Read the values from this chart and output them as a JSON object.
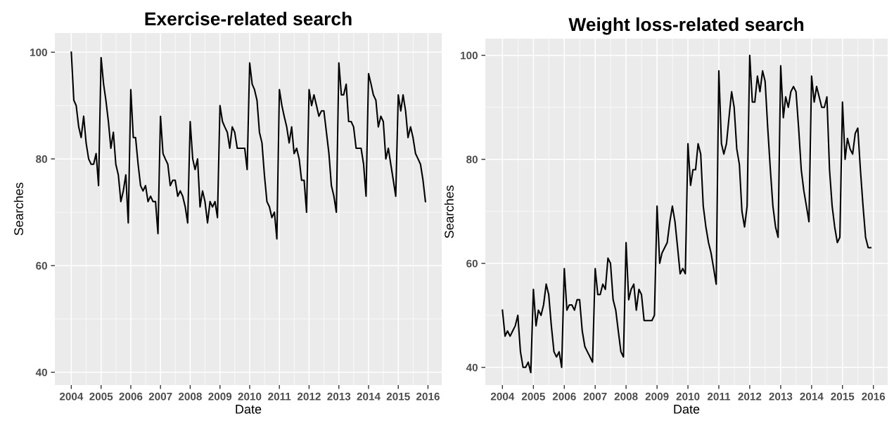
{
  "chart_data": [
    {
      "type": "line",
      "title": "Exercise-related search",
      "xlabel": "Date",
      "ylabel": "Searches",
      "x": [
        "2004-01",
        "2004-02",
        "2004-03",
        "2004-04",
        "2004-05",
        "2004-06",
        "2004-07",
        "2004-08",
        "2004-09",
        "2004-10",
        "2004-11",
        "2004-12",
        "2005-01",
        "2005-02",
        "2005-03",
        "2005-04",
        "2005-05",
        "2005-06",
        "2005-07",
        "2005-08",
        "2005-09",
        "2005-10",
        "2005-11",
        "2005-12",
        "2006-01",
        "2006-02",
        "2006-03",
        "2006-04",
        "2006-05",
        "2006-06",
        "2006-07",
        "2006-08",
        "2006-09",
        "2006-10",
        "2006-11",
        "2006-12",
        "2007-01",
        "2007-02",
        "2007-03",
        "2007-04",
        "2007-05",
        "2007-06",
        "2007-07",
        "2007-08",
        "2007-09",
        "2007-10",
        "2007-11",
        "2007-12",
        "2008-01",
        "2008-02",
        "2008-03",
        "2008-04",
        "2008-05",
        "2008-06",
        "2008-07",
        "2008-08",
        "2008-09",
        "2008-10",
        "2008-11",
        "2008-12",
        "2009-01",
        "2009-02",
        "2009-03",
        "2009-04",
        "2009-05",
        "2009-06",
        "2009-07",
        "2009-08",
        "2009-09",
        "2009-10",
        "2009-11",
        "2009-12",
        "2010-01",
        "2010-02",
        "2010-03",
        "2010-04",
        "2010-05",
        "2010-06",
        "2010-07",
        "2010-08",
        "2010-09",
        "2010-10",
        "2010-11",
        "2010-12",
        "2011-01",
        "2011-02",
        "2011-03",
        "2011-04",
        "2011-05",
        "2011-06",
        "2011-07",
        "2011-08",
        "2011-09",
        "2011-10",
        "2011-11",
        "2011-12",
        "2012-01",
        "2012-02",
        "2012-03",
        "2012-04",
        "2012-05",
        "2012-06",
        "2012-07",
        "2012-08",
        "2012-09",
        "2012-10",
        "2012-11",
        "2012-12",
        "2013-01",
        "2013-02",
        "2013-03",
        "2013-04",
        "2013-05",
        "2013-06",
        "2013-07",
        "2013-08",
        "2013-09",
        "2013-10",
        "2013-11",
        "2013-12",
        "2014-01",
        "2014-02",
        "2014-03",
        "2014-04",
        "2014-05",
        "2014-06",
        "2014-07",
        "2014-08",
        "2014-09",
        "2014-10",
        "2014-11",
        "2014-12",
        "2015-01",
        "2015-02",
        "2015-03",
        "2015-04",
        "2015-05",
        "2015-06",
        "2015-07",
        "2015-08",
        "2015-09",
        "2015-10",
        "2015-11",
        "2015-12"
      ],
      "series": [
        {
          "color": "#000000",
          "values": [
            100,
            91,
            90,
            86,
            84,
            88,
            83,
            80,
            79,
            79,
            81,
            75,
            99,
            94,
            91,
            87,
            82,
            85,
            79,
            77,
            72,
            74,
            77,
            68,
            93,
            84,
            84,
            79,
            75,
            74,
            75,
            72,
            73,
            72,
            72,
            66,
            88,
            81,
            80,
            79,
            75,
            76,
            76,
            73,
            74,
            73,
            71,
            68,
            87,
            80,
            78,
            80,
            71,
            74,
            72,
            68,
            72,
            71,
            72,
            69,
            90,
            87,
            86,
            85,
            82,
            86,
            85,
            82,
            82,
            82,
            82,
            78,
            98,
            94,
            93,
            91,
            85,
            83,
            77,
            72,
            71,
            69,
            70,
            65,
            93,
            90,
            88,
            86,
            83,
            86,
            81,
            82,
            80,
            76,
            76,
            70,
            93,
            90,
            92,
            90,
            88,
            89,
            89,
            85,
            81,
            75,
            73,
            70,
            98,
            92,
            92,
            94,
            87,
            87,
            86,
            82,
            82,
            82,
            79,
            73,
            96,
            94,
            92,
            91,
            86,
            88,
            87,
            80,
            82,
            79,
            76,
            73,
            92,
            89,
            92,
            89,
            84,
            86,
            84,
            81,
            80,
            79,
            76,
            72
          ]
        }
      ],
      "xlim": [
        "2003-06-13",
        "2016-06-18"
      ],
      "xticks": [
        "2004",
        "2005",
        "2006",
        "2007",
        "2008",
        "2009",
        "2010",
        "2011",
        "2012",
        "2013",
        "2014",
        "2015",
        "2016"
      ],
      "ylim": [
        37.6,
        103.6
      ],
      "yticks": [
        40,
        60,
        80,
        100
      ],
      "grid": true
    },
    {
      "type": "line",
      "title": "Weight loss-related search",
      "xlabel": "Date",
      "ylabel": "Searches",
      "x": [
        "2004-01",
        "2004-02",
        "2004-03",
        "2004-04",
        "2004-05",
        "2004-06",
        "2004-07",
        "2004-08",
        "2004-09",
        "2004-10",
        "2004-11",
        "2004-12",
        "2005-01",
        "2005-02",
        "2005-03",
        "2005-04",
        "2005-05",
        "2005-06",
        "2005-07",
        "2005-08",
        "2005-09",
        "2005-10",
        "2005-11",
        "2005-12",
        "2006-01",
        "2006-02",
        "2006-03",
        "2006-04",
        "2006-05",
        "2006-06",
        "2006-07",
        "2006-08",
        "2006-09",
        "2006-10",
        "2006-11",
        "2006-12",
        "2007-01",
        "2007-02",
        "2007-03",
        "2007-04",
        "2007-05",
        "2007-06",
        "2007-07",
        "2007-08",
        "2007-09",
        "2007-10",
        "2007-11",
        "2007-12",
        "2008-01",
        "2008-02",
        "2008-03",
        "2008-04",
        "2008-05",
        "2008-06",
        "2008-07",
        "2008-08",
        "2008-09",
        "2008-10",
        "2008-11",
        "2008-12",
        "2009-01",
        "2009-02",
        "2009-03",
        "2009-04",
        "2009-05",
        "2009-06",
        "2009-07",
        "2009-08",
        "2009-09",
        "2009-10",
        "2009-11",
        "2009-12",
        "2010-01",
        "2010-02",
        "2010-03",
        "2010-04",
        "2010-05",
        "2010-06",
        "2010-07",
        "2010-08",
        "2010-09",
        "2010-10",
        "2010-11",
        "2010-12",
        "2011-01",
        "2011-02",
        "2011-03",
        "2011-04",
        "2011-05",
        "2011-06",
        "2011-07",
        "2011-08",
        "2011-09",
        "2011-10",
        "2011-11",
        "2011-12",
        "2012-01",
        "2012-02",
        "2012-03",
        "2012-04",
        "2012-05",
        "2012-06",
        "2012-07",
        "2012-08",
        "2012-09",
        "2012-10",
        "2012-11",
        "2012-12",
        "2013-01",
        "2013-02",
        "2013-03",
        "2013-04",
        "2013-05",
        "2013-06",
        "2013-07",
        "2013-08",
        "2013-09",
        "2013-10",
        "2013-11",
        "2013-12",
        "2014-01",
        "2014-02",
        "2014-03",
        "2014-04",
        "2014-05",
        "2014-06",
        "2014-07",
        "2014-08",
        "2014-09",
        "2014-10",
        "2014-11",
        "2014-12",
        "2015-01",
        "2015-02",
        "2015-03",
        "2015-04",
        "2015-05",
        "2015-06",
        "2015-07",
        "2015-08",
        "2015-09",
        "2015-10",
        "2015-11",
        "2015-12"
      ],
      "series": [
        {
          "color": "#000000",
          "values": [
            51,
            46,
            47,
            46,
            47,
            48,
            50,
            43,
            40,
            40,
            41,
            39,
            55,
            48,
            51,
            50,
            52,
            56,
            54,
            48,
            43,
            42,
            43,
            40,
            59,
            51,
            52,
            52,
            51,
            53,
            53,
            47,
            44,
            43,
            42,
            41,
            59,
            54,
            54,
            56,
            55,
            61,
            60,
            53,
            51,
            47,
            43,
            42,
            64,
            53,
            55,
            56,
            51,
            55,
            54,
            49,
            49,
            49,
            49,
            50,
            71,
            60,
            62,
            63,
            64,
            68,
            71,
            68,
            63,
            58,
            59,
            58,
            83,
            75,
            78,
            78,
            83,
            81,
            71,
            67,
            64,
            62,
            59,
            56,
            97,
            83,
            81,
            83,
            88,
            93,
            90,
            82,
            79,
            70,
            67,
            71,
            100,
            91,
            91,
            96,
            93,
            97,
            95,
            86,
            78,
            71,
            67,
            65,
            98,
            88,
            92,
            90,
            93,
            94,
            93,
            86,
            78,
            74,
            71,
            68,
            96,
            91,
            94,
            92,
            90,
            90,
            92,
            78,
            71,
            67,
            64,
            65,
            91,
            80,
            84,
            82,
            81,
            85,
            86,
            78,
            71,
            65,
            63,
            63
          ]
        }
      ],
      "xlim": [
        "2003-06-13",
        "2016-06-18"
      ],
      "xticks": [
        "2004",
        "2005",
        "2006",
        "2007",
        "2008",
        "2009",
        "2010",
        "2011",
        "2012",
        "2013",
        "2014",
        "2015",
        "2016"
      ],
      "ylim": [
        36.6,
        103.2
      ],
      "yticks": [
        40,
        60,
        80,
        100
      ],
      "grid": true
    }
  ]
}
